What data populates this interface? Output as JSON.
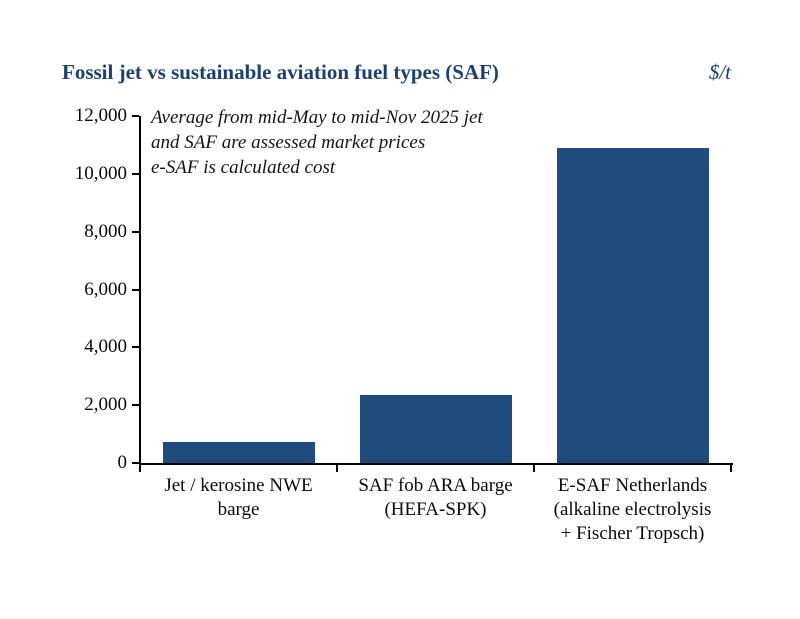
{
  "header": {
    "title": "Fossil jet vs sustainable aviation fuel types (SAF)",
    "units": "$/t",
    "title_color": "#1c4170"
  },
  "chart_data": {
    "type": "bar",
    "title": "Fossil jet vs sustainable aviation fuel types (SAF)",
    "ylabel": "$/t",
    "xlabel": "",
    "categories": [
      "Jet / kerosine NWE barge",
      "SAF fob ARA barge (HEFA-SPK)",
      "E-SAF Netherlands (alkaline electrolysis + Fischer Tropsch)"
    ],
    "category_lines": [
      [
        "Jet / kerosine NWE",
        "barge"
      ],
      [
        "SAF fob ARA barge",
        "(HEFA-SPK)"
      ],
      [
        "E-SAF Netherlands",
        "(alkaline electrolysis",
        "+ Fischer Tropsch)"
      ]
    ],
    "values": [
      720,
      2350,
      10900
    ],
    "ylim": [
      0,
      12000
    ],
    "yticks": [
      0,
      2000,
      4000,
      6000,
      8000,
      10000,
      12000
    ],
    "ytick_labels": [
      "0",
      "2,000",
      "4,000",
      "6,000",
      "8,000",
      "10,000",
      "12,000"
    ],
    "grid": false,
    "legend": "none",
    "bar_color": "#204c7d",
    "axis_color": "#000000",
    "text_color": "#0a0a0a",
    "annotation": [
      "Average from mid-May to mid-Nov 2025 jet",
      "and SAF are assessed market prices",
      "e-SAF is calculated cost"
    ]
  }
}
